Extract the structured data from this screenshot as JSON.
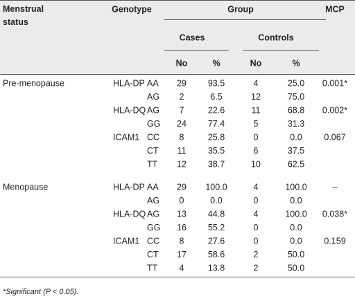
{
  "header": {
    "status": "Menstrual status",
    "genotype": "Genotype",
    "group": "Group",
    "mcp": "MCP",
    "cases": "Cases",
    "controls": "Controls",
    "no_cases": "No",
    "pct_cases": "%",
    "no_controls": "No",
    "pct_controls": "%"
  },
  "groups": [
    {
      "status": "Pre-menopause",
      "genes": [
        {
          "gene": "HLA-DP",
          "mcp": "0.001*",
          "rows": [
            [
              "AA",
              "29",
              "93.5",
              "4",
              "25.0"
            ],
            [
              "AG",
              "2",
              "6.5",
              "12",
              "75.0"
            ]
          ]
        },
        {
          "gene": "HLA-DQ",
          "mcp": "0.002*",
          "rows": [
            [
              "AG",
              "7",
              "22.6",
              "11",
              "68.8"
            ],
            [
              "GG",
              "24",
              "77.4",
              "5",
              "31.3"
            ]
          ]
        },
        {
          "gene": "ICAM1",
          "mcp": "0.067",
          "rows": [
            [
              "CC",
              "8",
              "25.8",
              "0",
              "0.0"
            ],
            [
              "CT",
              "11",
              "35.5",
              "6",
              "37.5"
            ],
            [
              "TT",
              "12",
              "38.7",
              "10",
              "62.5"
            ]
          ]
        }
      ]
    },
    {
      "status": "Menopause",
      "genes": [
        {
          "gene": "HLA-DP",
          "mcp": "–",
          "rows": [
            [
              "AA",
              "29",
              "100.0",
              "4",
              "100.0"
            ],
            [
              "AG",
              "0",
              "0.0",
              "0",
              "0.0"
            ]
          ]
        },
        {
          "gene": "HLA-DQ",
          "mcp": "0.038*",
          "rows": [
            [
              "AG",
              "13",
              "44.8",
              "4",
              "100.0"
            ],
            [
              "GG",
              "16",
              "55.2",
              "0",
              "0.0"
            ]
          ]
        },
        {
          "gene": "ICAM1",
          "mcp": "0.159",
          "rows": [
            [
              "CC",
              "8",
              "27.6",
              "0",
              "0.0"
            ],
            [
              "CT",
              "17",
              "58.6",
              "2",
              "50.0"
            ],
            [
              "TT",
              "4",
              "13.8",
              "2",
              "50.0"
            ]
          ]
        }
      ]
    }
  ],
  "footnote": "*Significant (P < 0.05)."
}
